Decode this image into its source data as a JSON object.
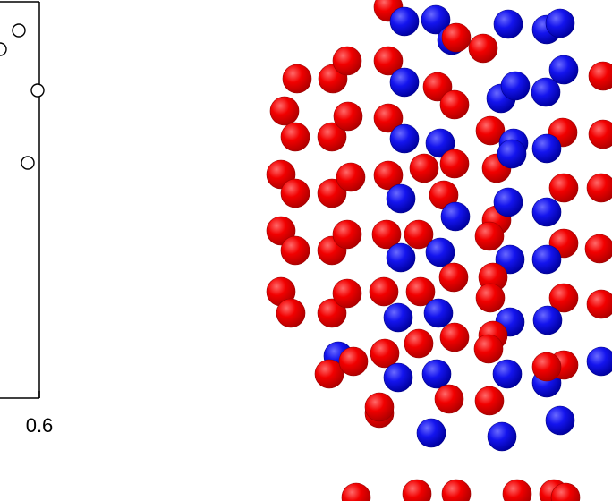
{
  "chart_data": {
    "type": "scatter",
    "title": "",
    "xlabel": "",
    "ylabel": "",
    "x_tick_labels": [
      "0.6"
    ],
    "marker": "open-circle",
    "points_visible": 4
  },
  "panel_b": {
    "kind": "atomic-structure-rendering",
    "sphere_colors": {
      "red": "#ff0000",
      "blue": "#1a1aff"
    }
  },
  "colors": {
    "axis": "#000000",
    "background": "#ffffff"
  }
}
